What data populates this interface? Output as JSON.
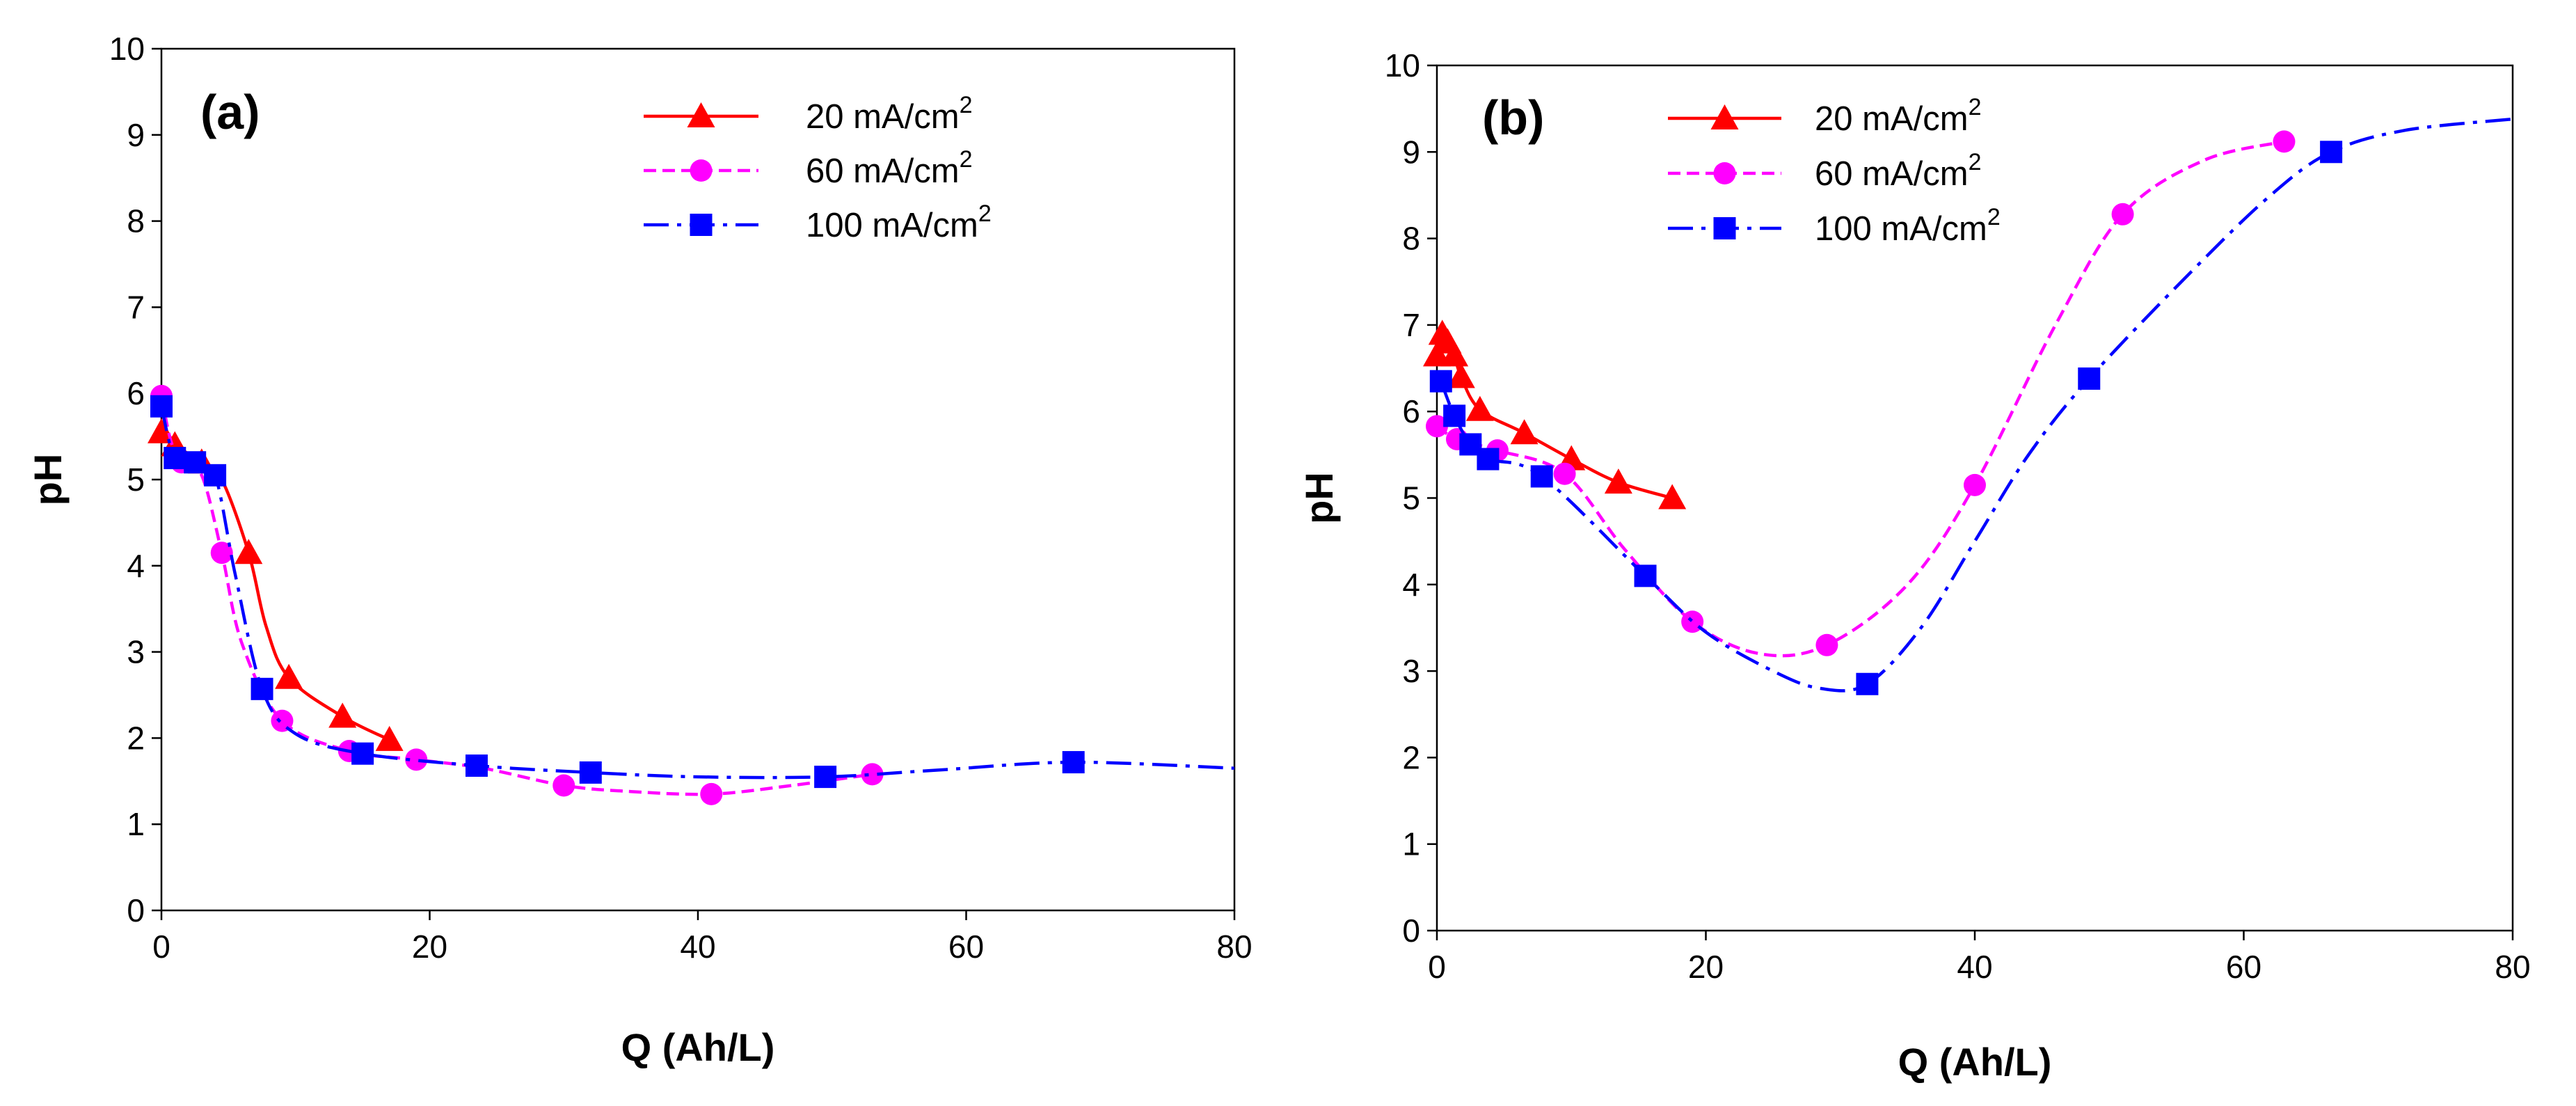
{
  "chart_data": [
    {
      "panel": "(a)",
      "type": "line",
      "xlabel": "Q (Ah/L)",
      "ylabel": "pH",
      "xlim": [
        0,
        80
      ],
      "ylim": [
        0,
        10
      ],
      "xticks": [
        0,
        20,
        40,
        60,
        80
      ],
      "yticks": [
        0,
        1,
        2,
        3,
        4,
        5,
        6,
        7,
        8,
        9,
        10
      ],
      "grid": false,
      "legend": "top-right",
      "series": [
        {
          "name": "20 mA/cm",
          "sup": "2",
          "color": "#ff0000",
          "marker": "triangle",
          "dash": "solid",
          "points": [
            [
              0,
              5.55
            ],
            [
              1,
              5.4
            ],
            [
              3,
              5.2
            ],
            [
              6.5,
              4.15
            ],
            [
              9.5,
              2.7
            ],
            [
              13.5,
              2.25
            ],
            [
              17,
              1.98
            ]
          ],
          "curve": [
            [
              0,
              5.55
            ],
            [
              1,
              5.4
            ],
            [
              3,
              5.2
            ],
            [
              4.5,
              5.0
            ],
            [
              6.5,
              4.15
            ],
            [
              7.8,
              3.3
            ],
            [
              9.5,
              2.7
            ],
            [
              13.5,
              2.25
            ],
            [
              17,
              1.98
            ]
          ]
        },
        {
          "name": "60 mA/cm",
          "sup": "2",
          "color": "#ff00ff",
          "marker": "circle",
          "dash": "dash",
          "points": [
            [
              0,
              5.97
            ],
            [
              1.5,
              5.2
            ],
            [
              4.5,
              4.15
            ],
            [
              9,
              2.2
            ],
            [
              14,
              1.85
            ],
            [
              19,
              1.75
            ],
            [
              30,
              1.45
            ],
            [
              41,
              1.35
            ],
            [
              53,
              1.58
            ]
          ],
          "curve": [
            [
              0,
              5.97
            ],
            [
              0.7,
              5.45
            ],
            [
              1.5,
              5.2
            ],
            [
              3,
              5.05
            ],
            [
              4.5,
              4.15
            ],
            [
              6,
              3.1
            ],
            [
              9,
              2.2
            ],
            [
              14,
              1.85
            ],
            [
              19,
              1.75
            ],
            [
              24,
              1.65
            ],
            [
              30,
              1.45
            ],
            [
              35,
              1.38
            ],
            [
              41,
              1.35
            ],
            [
              47,
              1.45
            ],
            [
              53,
              1.58
            ]
          ]
        },
        {
          "name": "100 mA/cm",
          "sup": "2",
          "color": "#0000ff",
          "marker": "square",
          "dash": "dashdot",
          "points": [
            [
              0,
              5.85
            ],
            [
              1,
              5.25
            ],
            [
              2.5,
              5.2
            ],
            [
              4,
              5.05
            ],
            [
              7.5,
              2.57
            ],
            [
              15,
              1.82
            ],
            [
              23.5,
              1.68
            ],
            [
              32,
              1.6
            ],
            [
              49.5,
              1.55
            ],
            [
              68,
              1.72
            ]
          ],
          "curve": [
            [
              0,
              5.85
            ],
            [
              1,
              5.25
            ],
            [
              2.5,
              5.2
            ],
            [
              4,
              5.05
            ],
            [
              5.5,
              3.9
            ],
            [
              7.5,
              2.57
            ],
            [
              10,
              2.05
            ],
            [
              15,
              1.82
            ],
            [
              23.5,
              1.68
            ],
            [
              32,
              1.6
            ],
            [
              40,
              1.55
            ],
            [
              49.5,
              1.55
            ],
            [
              58,
              1.63
            ],
            [
              68,
              1.72
            ],
            [
              80,
              1.65
            ]
          ]
        }
      ]
    },
    {
      "panel": "(b)",
      "type": "line",
      "xlabel": "Q (Ah/L)",
      "ylabel": "pH",
      "xlim": [
        0,
        80
      ],
      "ylim": [
        0,
        10
      ],
      "xticks": [
        0,
        20,
        40,
        60,
        80
      ],
      "yticks": [
        0,
        1,
        2,
        3,
        4,
        5,
        6,
        7,
        8,
        9,
        10
      ],
      "grid": false,
      "legend": "top-left",
      "series": [
        {
          "name": "20 mA/cm",
          "sup": "2",
          "color": "#ff0000",
          "marker": "triangle",
          "dash": "solid",
          "points": [
            [
              0,
              6.65
            ],
            [
              0.4,
              6.9
            ],
            [
              0.8,
              6.8
            ],
            [
              1.3,
              6.65
            ],
            [
              1.8,
              6.4
            ],
            [
              3.2,
              6.02
            ],
            [
              6.5,
              5.75
            ],
            [
              10,
              5.45
            ],
            [
              13.5,
              5.18
            ],
            [
              17.5,
              5.0
            ]
          ],
          "curve": [
            [
              0,
              6.65
            ],
            [
              0.4,
              6.9
            ],
            [
              0.8,
              6.8
            ],
            [
              1.3,
              6.65
            ],
            [
              1.8,
              6.4
            ],
            [
              3.2,
              6.02
            ],
            [
              6.5,
              5.75
            ],
            [
              10,
              5.45
            ],
            [
              13.5,
              5.18
            ],
            [
              17.5,
              5.0
            ]
          ]
        },
        {
          "name": "60 mA/cm",
          "sup": "2",
          "color": "#ff00ff",
          "marker": "circle",
          "dash": "dash",
          "points": [
            [
              0,
              5.83
            ],
            [
              1.5,
              5.68
            ],
            [
              4.5,
              5.55
            ],
            [
              9.5,
              5.28
            ],
            [
              19,
              3.57
            ],
            [
              29,
              3.3
            ],
            [
              40,
              5.15
            ],
            [
              51,
              8.28
            ],
            [
              63,
              9.12
            ]
          ],
          "curve": [
            [
              0,
              5.83
            ],
            [
              1.5,
              5.68
            ],
            [
              4.5,
              5.55
            ],
            [
              9.5,
              5.28
            ],
            [
              14,
              4.4
            ],
            [
              19,
              3.57
            ],
            [
              24,
              3.2
            ],
            [
              29,
              3.3
            ],
            [
              35,
              4.0
            ],
            [
              40,
              5.15
            ],
            [
              46,
              7.0
            ],
            [
              51,
              8.28
            ],
            [
              57,
              8.9
            ],
            [
              63,
              9.12
            ]
          ]
        },
        {
          "name": "100 mA/cm",
          "sup": "2",
          "color": "#0000ff",
          "marker": "square",
          "dash": "dashdot",
          "points": [
            [
              0.3,
              6.35
            ],
            [
              1.3,
              5.95
            ],
            [
              2.5,
              5.62
            ],
            [
              3.8,
              5.45
            ],
            [
              7.8,
              5.25
            ],
            [
              15.5,
              4.1
            ],
            [
              32,
              2.85
            ],
            [
              48.5,
              6.38
            ],
            [
              66.5,
              9.0
            ]
          ],
          "curve": [
            [
              0.3,
              6.35
            ],
            [
              1.3,
              5.95
            ],
            [
              2.5,
              5.62
            ],
            [
              3.8,
              5.45
            ],
            [
              7.8,
              5.25
            ],
            [
              15.5,
              4.1
            ],
            [
              20,
              3.45
            ],
            [
              25,
              3.0
            ],
            [
              28.5,
              2.8
            ],
            [
              32,
              2.85
            ],
            [
              36,
              3.5
            ],
            [
              40,
              4.5
            ],
            [
              44,
              5.5
            ],
            [
              48.5,
              6.38
            ],
            [
              56,
              7.6
            ],
            [
              62,
              8.5
            ],
            [
              66.5,
              9.0
            ],
            [
              72,
              9.25
            ],
            [
              80,
              9.38
            ]
          ]
        }
      ]
    }
  ]
}
